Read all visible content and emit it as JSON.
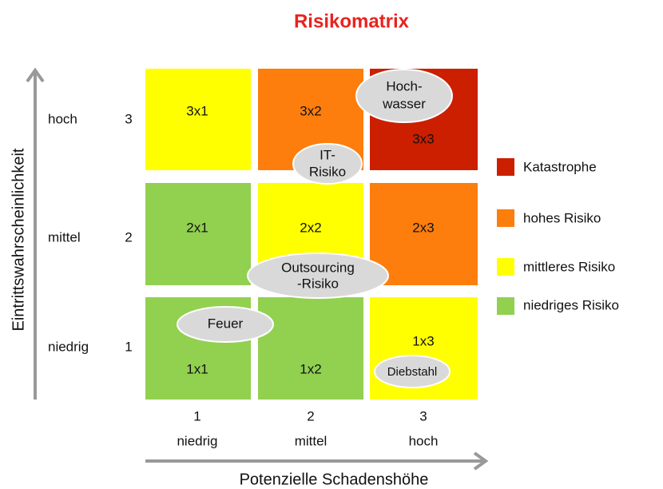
{
  "title": "Risikomatrix",
  "y_axis": {
    "title": "Eintrittswahrscheinlichkeit",
    "levels": [
      {
        "name": "hoch",
        "number": "3"
      },
      {
        "name": "mittel",
        "number": "2"
      },
      {
        "name": "niedrig",
        "number": "1"
      }
    ]
  },
  "x_axis": {
    "title": "Potenzielle Schadenshöhe",
    "levels": [
      {
        "number": "1",
        "name": "niedrig"
      },
      {
        "number": "2",
        "name": "mittel"
      },
      {
        "number": "3",
        "name": "hoch"
      }
    ]
  },
  "cells": [
    [
      "3x1",
      "3x2",
      "3x3"
    ],
    [
      "2x1",
      "2x2",
      "2x3"
    ],
    [
      "1x1",
      "1x2",
      "1x3"
    ]
  ],
  "events": [
    {
      "lines": [
        "Hoch-",
        "wasser"
      ]
    },
    {
      "lines": [
        "IT-",
        "Risiko"
      ]
    },
    {
      "lines": [
        "Outsourcing",
        "-Risiko"
      ]
    },
    {
      "lines": [
        "Feuer"
      ]
    },
    {
      "lines": [
        "Diebstahl"
      ]
    }
  ],
  "legend": [
    "Katastrophe",
    "hohes Risiko",
    "mittleres Risiko",
    "niedriges Risiko"
  ]
}
